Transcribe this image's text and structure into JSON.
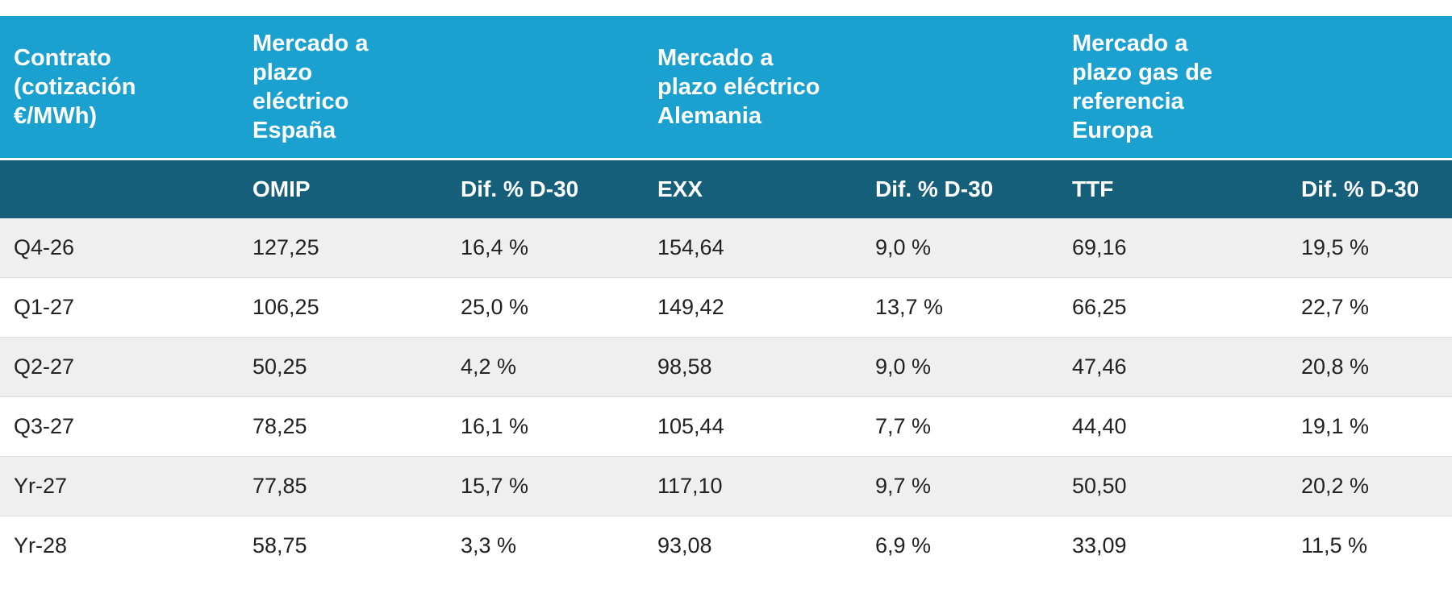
{
  "header": {
    "groups": [
      "Contrato (cotización €/MWh)",
      "Mercado a plazo eléctrico España",
      "Mercado a plazo eléctrico Alemania",
      "Mercado a plazo gas de referencia Europa"
    ],
    "subheaders": [
      "",
      "OMIP",
      "Dif. % D-30",
      "EXX",
      "Dif. % D-30",
      "TTF",
      "Dif. % D-30"
    ]
  },
  "rows": [
    {
      "contract": "Q4-26",
      "omip": "127,25",
      "omip_diff": "16,4 %",
      "exx": "154,64",
      "exx_diff": "9,0 %",
      "ttf": "69,16",
      "ttf_diff": "19,5 %"
    },
    {
      "contract": "Q1-27",
      "omip": "106,25",
      "omip_diff": "25,0 %",
      "exx": "149,42",
      "exx_diff": "13,7 %",
      "ttf": "66,25",
      "ttf_diff": "22,7 %"
    },
    {
      "contract": "Q2-27",
      "omip": "50,25",
      "omip_diff": "4,2 %",
      "exx": "98,58",
      "exx_diff": "9,0 %",
      "ttf": "47,46",
      "ttf_diff": "20,8 %"
    },
    {
      "contract": "Q3-27",
      "omip": "78,25",
      "omip_diff": "16,1 %",
      "exx": "105,44",
      "exx_diff": "7,7 %",
      "ttf": "44,40",
      "ttf_diff": "19,1 %"
    },
    {
      "contract": "Yr-27",
      "omip": "77,85",
      "omip_diff": "15,7 %",
      "exx": "117,10",
      "exx_diff": "9,7 %",
      "ttf": "50,50",
      "ttf_diff": "20,2 %"
    },
    {
      "contract": "Yr-28",
      "omip": "58,75",
      "omip_diff": "3,3 %",
      "exx": "93,08",
      "exx_diff": "6,9 %",
      "ttf": "33,09",
      "ttf_diff": "11,5 %"
    }
  ],
  "colors": {
    "group_header_bg": "#1aa1cf",
    "sub_header_bg": "#155f7a",
    "row_alt_bg": "#efefef"
  }
}
